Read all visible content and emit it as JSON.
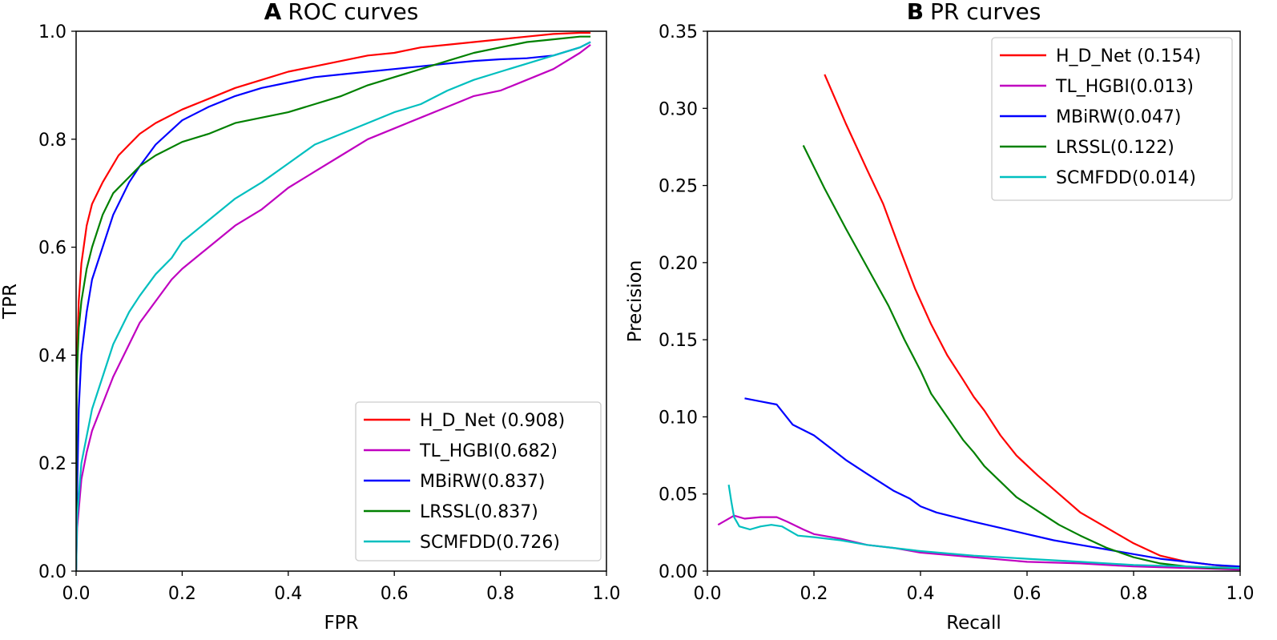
{
  "chart_data": [
    {
      "type": "line",
      "panel_letter": "A",
      "title": "ROC curves",
      "xlabel": "FPR",
      "ylabel": "TPR",
      "xlim": [
        0,
        1
      ],
      "ylim": [
        0,
        1
      ],
      "xticks": [
        "0.0",
        "0.2",
        "0.4",
        "0.6",
        "0.8",
        "1.0"
      ],
      "yticks": [
        "0.0",
        "0.2",
        "0.4",
        "0.6",
        "0.8",
        "1.0"
      ],
      "legend_position": "lower-right",
      "series": [
        {
          "name": "H_D_Net",
          "legend": "H_D_Net  (0.908)",
          "color": "#ff0000",
          "x": [
            0,
            0.001,
            0.005,
            0.01,
            0.02,
            0.03,
            0.05,
            0.08,
            0.1,
            0.12,
            0.15,
            0.2,
            0.25,
            0.3,
            0.35,
            0.4,
            0.45,
            0.5,
            0.55,
            0.6,
            0.65,
            0.7,
            0.75,
            0.8,
            0.85,
            0.9,
            0.95,
            0.97
          ],
          "y": [
            0,
            0.38,
            0.5,
            0.57,
            0.64,
            0.68,
            0.72,
            0.77,
            0.79,
            0.81,
            0.83,
            0.855,
            0.875,
            0.895,
            0.91,
            0.925,
            0.935,
            0.945,
            0.955,
            0.96,
            0.97,
            0.975,
            0.98,
            0.985,
            0.99,
            0.995,
            0.997,
            0.997
          ]
        },
        {
          "name": "TL_HGBI",
          "legend": "TL_HGBI(0.682)",
          "color": "#c000c0",
          "x": [
            0,
            0.002,
            0.01,
            0.02,
            0.03,
            0.05,
            0.07,
            0.1,
            0.12,
            0.15,
            0.18,
            0.2,
            0.25,
            0.3,
            0.35,
            0.4,
            0.45,
            0.5,
            0.55,
            0.6,
            0.65,
            0.7,
            0.75,
            0.8,
            0.85,
            0.9,
            0.95,
            0.97
          ],
          "y": [
            0,
            0.08,
            0.17,
            0.22,
            0.26,
            0.31,
            0.36,
            0.42,
            0.46,
            0.5,
            0.54,
            0.56,
            0.6,
            0.64,
            0.67,
            0.71,
            0.74,
            0.77,
            0.8,
            0.82,
            0.84,
            0.86,
            0.88,
            0.89,
            0.91,
            0.93,
            0.96,
            0.975
          ]
        },
        {
          "name": "MBiRW",
          "legend": "MBiRW(0.837)",
          "color": "#0000ff",
          "x": [
            0,
            0.002,
            0.005,
            0.01,
            0.02,
            0.03,
            0.05,
            0.07,
            0.1,
            0.12,
            0.15,
            0.2,
            0.25,
            0.3,
            0.35,
            0.4,
            0.45,
            0.5,
            0.55,
            0.6,
            0.65,
            0.7,
            0.75,
            0.8,
            0.85,
            0.9,
            0.95,
            0.97
          ],
          "y": [
            0,
            0.15,
            0.3,
            0.4,
            0.48,
            0.54,
            0.6,
            0.66,
            0.72,
            0.75,
            0.79,
            0.835,
            0.86,
            0.88,
            0.895,
            0.905,
            0.915,
            0.92,
            0.925,
            0.93,
            0.935,
            0.94,
            0.945,
            0.948,
            0.95,
            0.955,
            0.97,
            0.98
          ]
        },
        {
          "name": "LRSSL",
          "legend": "LRSSL(0.837)",
          "color": "#008000",
          "x": [
            0,
            0.001,
            0.005,
            0.01,
            0.02,
            0.03,
            0.05,
            0.07,
            0.1,
            0.12,
            0.15,
            0.2,
            0.25,
            0.3,
            0.35,
            0.4,
            0.45,
            0.5,
            0.55,
            0.6,
            0.65,
            0.7,
            0.75,
            0.8,
            0.85,
            0.9,
            0.95,
            0.97
          ],
          "y": [
            0,
            0.35,
            0.45,
            0.5,
            0.56,
            0.6,
            0.66,
            0.7,
            0.73,
            0.75,
            0.77,
            0.795,
            0.81,
            0.83,
            0.84,
            0.85,
            0.865,
            0.88,
            0.9,
            0.915,
            0.93,
            0.945,
            0.96,
            0.97,
            0.98,
            0.985,
            0.99,
            0.99
          ]
        },
        {
          "name": "SCMFDD",
          "legend": "SCMFDD(0.726)",
          "color": "#00bfbf",
          "x": [
            0,
            0.002,
            0.01,
            0.02,
            0.03,
            0.05,
            0.07,
            0.1,
            0.12,
            0.15,
            0.18,
            0.2,
            0.25,
            0.3,
            0.35,
            0.4,
            0.45,
            0.5,
            0.55,
            0.6,
            0.65,
            0.7,
            0.75,
            0.8,
            0.85,
            0.9,
            0.95,
            0.97
          ],
          "y": [
            0,
            0.1,
            0.2,
            0.25,
            0.3,
            0.36,
            0.42,
            0.48,
            0.51,
            0.55,
            0.58,
            0.61,
            0.65,
            0.69,
            0.72,
            0.755,
            0.79,
            0.81,
            0.83,
            0.85,
            0.865,
            0.89,
            0.91,
            0.925,
            0.94,
            0.955,
            0.97,
            0.98
          ]
        }
      ]
    },
    {
      "type": "line",
      "panel_letter": "B",
      "title": "PR curves",
      "xlabel": "Recall",
      "ylabel": "Precision",
      "xlim": [
        0,
        1
      ],
      "ylim": [
        0,
        0.35
      ],
      "xticks": [
        "0.0",
        "0.2",
        "0.4",
        "0.6",
        "0.8",
        "1.0"
      ],
      "yticks": [
        "0.00",
        "0.05",
        "0.10",
        "0.15",
        "0.20",
        "0.25",
        "0.30",
        "0.35"
      ],
      "legend_position": "upper-right",
      "series": [
        {
          "name": "H_D_Net",
          "legend": "H_D_Net  (0.154)",
          "color": "#ff0000",
          "x": [
            0.22,
            0.26,
            0.3,
            0.33,
            0.36,
            0.39,
            0.42,
            0.45,
            0.48,
            0.5,
            0.52,
            0.55,
            0.58,
            0.62,
            0.66,
            0.7,
            0.75,
            0.8,
            0.85,
            0.9,
            0.95,
            1.0
          ],
          "y": [
            0.322,
            0.29,
            0.26,
            0.238,
            0.21,
            0.183,
            0.16,
            0.14,
            0.124,
            0.113,
            0.104,
            0.088,
            0.075,
            0.062,
            0.05,
            0.038,
            0.028,
            0.018,
            0.01,
            0.006,
            0.004,
            0.002
          ]
        },
        {
          "name": "TL_HGBI",
          "legend": "TL_HGBI(0.013)",
          "color": "#c000c0",
          "x": [
            0.02,
            0.05,
            0.07,
            0.1,
            0.13,
            0.15,
            0.18,
            0.2,
            0.25,
            0.3,
            0.35,
            0.4,
            0.5,
            0.6,
            0.7,
            0.8,
            0.9,
            1.0
          ],
          "y": [
            0.03,
            0.036,
            0.034,
            0.035,
            0.035,
            0.032,
            0.027,
            0.024,
            0.021,
            0.017,
            0.015,
            0.012,
            0.009,
            0.006,
            0.005,
            0.003,
            0.002,
            0.001
          ]
        },
        {
          "name": "MBiRW",
          "legend": "MBiRW(0.047)",
          "color": "#0000ff",
          "x": [
            0.07,
            0.1,
            0.13,
            0.16,
            0.2,
            0.23,
            0.26,
            0.3,
            0.35,
            0.38,
            0.4,
            0.43,
            0.5,
            0.55,
            0.6,
            0.65,
            0.7,
            0.75,
            0.8,
            0.85,
            0.9,
            0.95,
            1.0
          ],
          "y": [
            0.112,
            0.11,
            0.108,
            0.095,
            0.088,
            0.08,
            0.072,
            0.063,
            0.052,
            0.047,
            0.042,
            0.038,
            0.032,
            0.028,
            0.024,
            0.02,
            0.017,
            0.014,
            0.011,
            0.008,
            0.006,
            0.004,
            0.003
          ]
        },
        {
          "name": "LRSSL",
          "legend": "LRSSL(0.122)",
          "color": "#008000",
          "x": [
            0.18,
            0.22,
            0.26,
            0.3,
            0.34,
            0.37,
            0.4,
            0.42,
            0.45,
            0.48,
            0.5,
            0.52,
            0.55,
            0.58,
            0.62,
            0.66,
            0.7,
            0.75,
            0.8,
            0.85,
            0.9,
            0.95,
            1.0
          ],
          "y": [
            0.276,
            0.248,
            0.222,
            0.197,
            0.172,
            0.15,
            0.13,
            0.115,
            0.1,
            0.085,
            0.077,
            0.068,
            0.058,
            0.048,
            0.039,
            0.03,
            0.023,
            0.015,
            0.009,
            0.005,
            0.003,
            0.002,
            0.002
          ]
        },
        {
          "name": "SCMFDD",
          "legend": "SCMFDD(0.014)",
          "color": "#00bfbf",
          "x": [
            0.04,
            0.045,
            0.05,
            0.06,
            0.08,
            0.1,
            0.12,
            0.14,
            0.17,
            0.2,
            0.25,
            0.3,
            0.35,
            0.4,
            0.5,
            0.6,
            0.7,
            0.8,
            0.9,
            1.0
          ],
          "y": [
            0.056,
            0.045,
            0.035,
            0.029,
            0.027,
            0.029,
            0.03,
            0.029,
            0.023,
            0.022,
            0.02,
            0.017,
            0.015,
            0.013,
            0.01,
            0.008,
            0.006,
            0.004,
            0.003,
            0.002
          ]
        }
      ]
    }
  ]
}
